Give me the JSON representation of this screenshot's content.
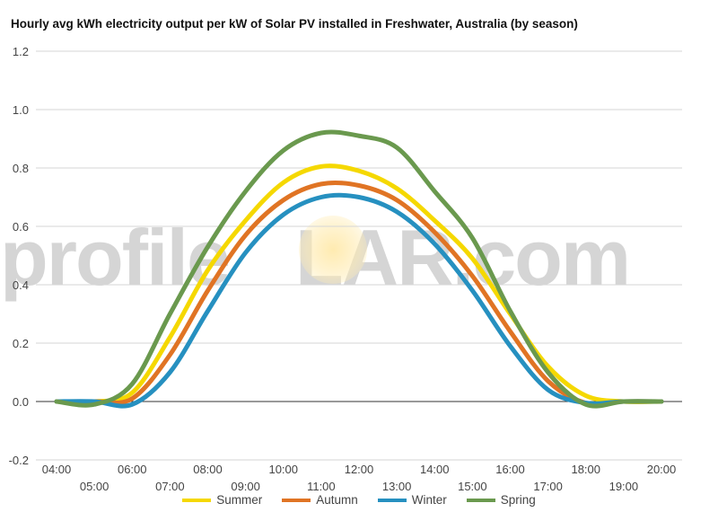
{
  "title": "Hourly avg kWh electricity output per kW of Solar PV installed in Freshwater, Australia (by season)",
  "watermark": {
    "left": "profile",
    "right": "LAR.com"
  },
  "chart_data": {
    "type": "line",
    "title": "Hourly avg kWh electricity output per kW of Solar PV installed in Freshwater, Australia (by season)",
    "xlabel": "",
    "ylabel": "",
    "ylim": [
      -0.2,
      1.2
    ],
    "yticks": [
      "-0.2",
      "0.0",
      "0.2",
      "0.4",
      "0.6",
      "0.8",
      "1.0",
      "1.2"
    ],
    "x": [
      "04:00",
      "05:00",
      "06:00",
      "07:00",
      "08:00",
      "09:00",
      "10:00",
      "11:00",
      "12:00",
      "13:00",
      "14:00",
      "15:00",
      "16:00",
      "17:00",
      "18:00",
      "19:00",
      "20:00"
    ],
    "grid": true,
    "legend_position": "bottom",
    "series": [
      {
        "name": "Summer",
        "color": "#f5d800",
        "values": [
          0,
          0,
          0.03,
          0.22,
          0.45,
          0.62,
          0.75,
          0.805,
          0.79,
          0.73,
          0.62,
          0.49,
          0.3,
          0.12,
          0.02,
          0,
          0
        ]
      },
      {
        "name": "Autumn",
        "color": "#e07424",
        "values": [
          0,
          0,
          0.01,
          0.16,
          0.38,
          0.57,
          0.69,
          0.745,
          0.74,
          0.69,
          0.58,
          0.43,
          0.24,
          0.07,
          -0.005,
          0,
          0
        ]
      },
      {
        "name": "Winter",
        "color": "#2690c0",
        "values": [
          0,
          0,
          -0.01,
          0.1,
          0.31,
          0.51,
          0.64,
          0.7,
          0.7,
          0.65,
          0.54,
          0.38,
          0.19,
          0.04,
          -0.005,
          0,
          0
        ]
      },
      {
        "name": "Spring",
        "color": "#6a994e",
        "values": [
          0,
          -0.01,
          0.06,
          0.3,
          0.53,
          0.72,
          0.86,
          0.92,
          0.91,
          0.87,
          0.72,
          0.56,
          0.31,
          0.1,
          -0.01,
          0,
          0
        ]
      }
    ]
  }
}
